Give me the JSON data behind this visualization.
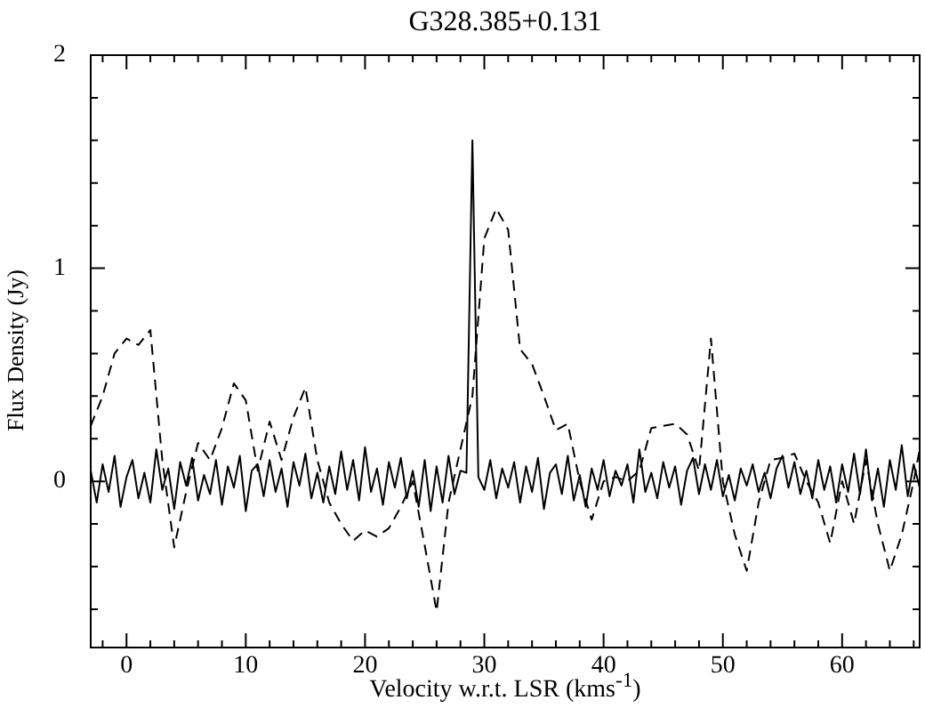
{
  "chart_data": {
    "type": "line",
    "title": "G328.385+0.131",
    "xlabel": "Velocity w.r.t. LSR (kms$^{-1}$)",
    "ylabel": "Flux Density (Jy)",
    "xlim": [
      -3,
      66.5
    ],
    "ylim": [
      -0.78,
      2
    ],
    "xticks": [
      {
        "value": -2,
        "label": null
      },
      0,
      {
        "value": 2,
        "label": null
      },
      {
        "value": 4,
        "label": null
      },
      {
        "value": 6,
        "label": null
      },
      {
        "value": 8,
        "label": null
      },
      10,
      {
        "value": 12,
        "label": null
      },
      {
        "value": 14,
        "label": null
      },
      {
        "value": 16,
        "label": null
      },
      {
        "value": 18,
        "label": null
      },
      20,
      {
        "value": 22,
        "label": null
      },
      {
        "value": 24,
        "label": null
      },
      {
        "value": 26,
        "label": null
      },
      {
        "value": 28,
        "label": null
      },
      30,
      {
        "value": 32,
        "label": null
      },
      {
        "value": 34,
        "label": null
      },
      {
        "value": 36,
        "label": null
      },
      {
        "value": 38,
        "label": null
      },
      40,
      {
        "value": 42,
        "label": null
      },
      {
        "value": 44,
        "label": null
      },
      {
        "value": 46,
        "label": null
      },
      {
        "value": 48,
        "label": null
      },
      50,
      {
        "value": 52,
        "label": null
      },
      {
        "value": 54,
        "label": null
      },
      {
        "value": 56,
        "label": null
      },
      {
        "value": 58,
        "label": null
      },
      60,
      {
        "value": 62,
        "label": null
      },
      {
        "value": 64,
        "label": null
      },
      {
        "value": 66,
        "label": null
      }
    ],
    "yticks": [
      {
        "value": -0.6,
        "label": null
      },
      {
        "value": -0.4,
        "label": null
      },
      {
        "value": -0.2,
        "label": null
      },
      0,
      {
        "value": 0.2,
        "label": null
      },
      {
        "value": 0.4,
        "label": null
      },
      {
        "value": 0.6,
        "label": null
      },
      {
        "value": 0.8,
        "label": null
      },
      1,
      {
        "value": 1.2,
        "label": null
      },
      {
        "value": 1.4,
        "label": null
      },
      {
        "value": 1.6,
        "label": null
      },
      {
        "value": 1.8,
        "label": null
      },
      2
    ],
    "series": [
      {
        "color": "#000000",
        "line_style": "dashed",
        "x": [
          -3,
          -2,
          -1,
          0,
          1,
          2,
          3,
          4,
          5,
          6,
          7,
          8,
          9,
          10,
          11,
          12,
          13,
          14,
          15,
          16,
          17,
          18,
          19,
          20,
          21,
          22,
          23,
          24,
          25,
          26,
          27,
          28,
          29,
          30,
          31,
          32,
          33,
          34,
          35,
          36,
          37,
          38,
          39,
          40,
          41,
          42,
          43,
          44,
          45,
          46,
          47,
          48,
          49,
          50,
          51,
          52,
          53,
          54,
          55,
          56,
          57,
          58,
          59,
          60,
          61,
          62,
          63,
          64,
          65,
          66,
          66.5
        ],
        "values": [
          0.26,
          0.4,
          0.6,
          0.67,
          0.64,
          0.71,
          0.1,
          -0.31,
          -0.05,
          0.18,
          0.1,
          0.25,
          0.46,
          0.38,
          0.05,
          0.28,
          0.1,
          0.3,
          0.44,
          0.1,
          -0.1,
          -0.2,
          -0.28,
          -0.23,
          -0.26,
          -0.22,
          -0.12,
          0.0,
          -0.3,
          -0.61,
          -0.1,
          0.15,
          0.4,
          1.14,
          1.28,
          1.18,
          0.62,
          0.55,
          0.4,
          0.24,
          0.27,
          0.0,
          -0.18,
          0.0,
          0.02,
          0.0,
          0.05,
          0.25,
          0.26,
          0.27,
          0.22,
          0.05,
          0.67,
          0.0,
          -0.25,
          -0.42,
          -0.1,
          0.1,
          0.11,
          0.13,
          0.0,
          -0.1,
          -0.29,
          0.0,
          -0.2,
          0.1,
          -0.2,
          -0.42,
          -0.25,
          0.0,
          0.15
        ]
      },
      {
        "color": "#000000",
        "line_style": "solid",
        "x": [
          -3,
          -2.5,
          -2,
          -1.5,
          -1,
          -0.5,
          0,
          0.5,
          1,
          1.5,
          2,
          2.5,
          3,
          3.5,
          4,
          4.5,
          5,
          5.5,
          6,
          6.5,
          7,
          7.5,
          8,
          8.5,
          9,
          9.5,
          10,
          10.5,
          11,
          11.5,
          12,
          12.5,
          13,
          13.5,
          14,
          14.5,
          15,
          15.5,
          16,
          16.5,
          17,
          17.5,
          18,
          18.5,
          19,
          19.5,
          20,
          20.5,
          21,
          21.5,
          22,
          22.5,
          23,
          23.5,
          24,
          24.5,
          25,
          25.5,
          26,
          26.5,
          27,
          27.5,
          28,
          28.5,
          29,
          29.5,
          30,
          30.5,
          31,
          31.5,
          32,
          32.5,
          33,
          33.5,
          34,
          34.5,
          35,
          35.5,
          36,
          36.5,
          37,
          37.5,
          38,
          38.5,
          39,
          39.5,
          40,
          40.5,
          41,
          41.5,
          42,
          42.5,
          43,
          43.5,
          44,
          44.5,
          45,
          45.5,
          46,
          46.5,
          47,
          47.5,
          48,
          48.5,
          49,
          49.5,
          50,
          50.5,
          51,
          51.5,
          52,
          52.5,
          53,
          53.5,
          54,
          54.5,
          55,
          55.5,
          56,
          56.5,
          57,
          57.5,
          58,
          58.5,
          59,
          59.5,
          60,
          60.5,
          61,
          61.5,
          62,
          62.5,
          63,
          63.5,
          64,
          64.5,
          65,
          65.5,
          66,
          66.5
        ],
        "values": [
          0.05,
          -0.1,
          0.08,
          -0.05,
          0.12,
          -0.12,
          0.02,
          0.1,
          -0.08,
          0.04,
          -0.1,
          0.15,
          -0.04,
          0.06,
          -0.13,
          0.09,
          -0.02,
          0.11,
          -0.09,
          0.03,
          -0.06,
          0.1,
          -0.11,
          0.07,
          -0.03,
          0.12,
          -0.14,
          0.05,
          0.08,
          -0.07,
          0.1,
          -0.05,
          0.06,
          -0.12,
          0.09,
          -0.02,
          0.13,
          -0.08,
          0.04,
          -0.1,
          0.07,
          -0.06,
          0.14,
          -0.04,
          0.1,
          -0.09,
          0.16,
          -0.05,
          0.06,
          -0.11,
          0.09,
          -0.03,
          0.11,
          -0.08,
          0.05,
          -0.12,
          0.1,
          -0.14,
          0.07,
          -0.1,
          0.12,
          -0.06,
          0.05,
          0.04,
          1.6,
          0.02,
          -0.04,
          0.1,
          -0.08,
          0.06,
          -0.03,
          0.09,
          -0.1,
          0.07,
          -0.05,
          0.11,
          -0.13,
          0.04,
          0.08,
          -0.06,
          0.12,
          -0.09,
          0.03,
          -0.12,
          0.06,
          -0.04,
          0.1,
          -0.07,
          0.05,
          -0.02,
          0.08,
          -0.1,
          0.15,
          -0.05,
          0.04,
          -0.08,
          0.09,
          -0.03,
          0.07,
          -0.11,
          0.05,
          0.11,
          -0.06,
          0.08,
          -0.04,
          0.1,
          -0.07,
          0.03,
          -0.09,
          0.06,
          -0.02,
          0.08,
          -0.05,
          0.04,
          -0.08,
          0.06,
          0.12,
          -0.03,
          0.09,
          -0.06,
          0.05,
          -0.08,
          0.1,
          -0.04,
          0.07,
          -0.1,
          0.08,
          -0.05,
          0.13,
          -0.06,
          0.15,
          -0.09,
          0.06,
          -0.12,
          0.1,
          -0.04,
          0.17,
          -0.07,
          0.08,
          -0.03
        ]
      }
    ]
  }
}
